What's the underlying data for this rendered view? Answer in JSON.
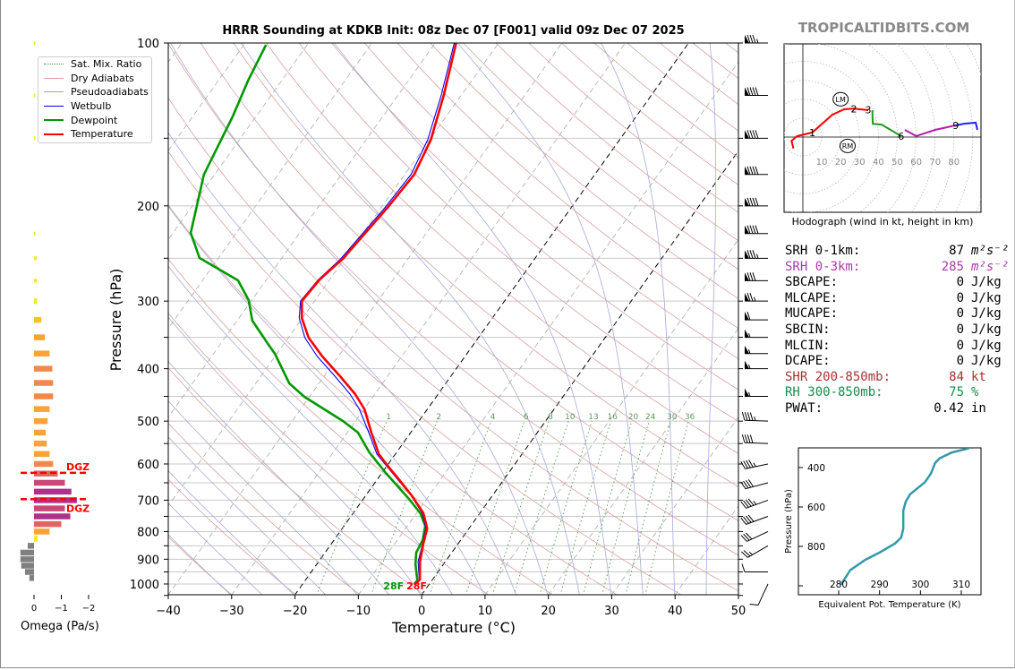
{
  "title": "HRRR Sounding at KDKB Init: 08z Dec 07 [F001] valid 09z Dec 07 2025",
  "brand": "TROPICALTIDBITS.COM",
  "legend": [
    {
      "label": "Sat. Mix. Ratio",
      "color": "#2ca02c",
      "style": "dotted"
    },
    {
      "label": "Dry Adiabats",
      "color": "#d9a0a0",
      "style": "solid"
    },
    {
      "label": "Pseudoadiabats",
      "color": "#a0a0d8",
      "style": "solid"
    },
    {
      "label": "Wetbulb",
      "color": "#0000ff",
      "style": "solid"
    },
    {
      "label": "Dewpoint",
      "color": "#009900",
      "style": "thick"
    },
    {
      "label": "Temperature",
      "color": "#ff0000",
      "style": "thick"
    }
  ],
  "surface_labels": {
    "temperature": "28F",
    "dewpoint": "28F"
  },
  "stats": [
    {
      "label": "SRH 0-1km:",
      "value": "87",
      "unit": "m²s⁻²",
      "color": "#000000",
      "italic_unit": true
    },
    {
      "label": "SRH 0-3km:",
      "value": "285",
      "unit": "m²s⁻²",
      "color": "#a63ca6",
      "italic_unit": true
    },
    {
      "label": "SBCAPE:",
      "value": "0",
      "unit": "J/kg",
      "color": "#000000"
    },
    {
      "label": "MLCAPE:",
      "value": "0",
      "unit": "J/kg",
      "color": "#000000"
    },
    {
      "label": "MUCAPE:",
      "value": "0",
      "unit": "J/kg",
      "color": "#000000"
    },
    {
      "label": "SBCIN:",
      "value": "0",
      "unit": "J/kg",
      "color": "#000000"
    },
    {
      "label": "MLCIN:",
      "value": "0",
      "unit": "J/kg",
      "color": "#000000"
    },
    {
      "label": "DCAPE:",
      "value": "0",
      "unit": "J/kg",
      "color": "#000000"
    },
    {
      "label": "SHR 200-850mb:",
      "value": "84",
      "unit": "kt",
      "color": "#a83232"
    },
    {
      "label": "RH 300-850mb:",
      "value": "75",
      "unit": "%",
      "color": "#1a8a4a"
    },
    {
      "label": "PWAT:",
      "value": "0.42",
      "unit": "in",
      "color": "#000000"
    }
  ],
  "hodograph": {
    "caption": "Hodograph (wind in kt, height in km)",
    "ring_labels": [
      "10",
      "20",
      "30",
      "40",
      "50",
      "60",
      "70",
      "80"
    ],
    "segments": [
      {
        "color": "#ff0000",
        "points": [
          [
            -5,
            -6
          ],
          [
            -6,
            -2
          ],
          [
            -3,
            0.5
          ],
          [
            5,
            2.4
          ],
          [
            15.6,
            11.8
          ],
          [
            21.8,
            14.7
          ],
          [
            27,
            15
          ],
          [
            34.6,
            14.2
          ]
        ]
      },
      {
        "color": "#1f9a1f",
        "points": [
          [
            36.8,
            14.2
          ],
          [
            37,
            7
          ],
          [
            41.7,
            6.6
          ],
          [
            52,
            0.5
          ]
        ]
      },
      {
        "color": "#b020b0",
        "points": [
          [
            54,
            3.8
          ],
          [
            60,
            0.5
          ],
          [
            70,
            3.8
          ],
          [
            81,
            6.2
          ]
        ]
      },
      {
        "color": "#2020ff",
        "points": [
          [
            81,
            6.2
          ],
          [
            85.8,
            7.1
          ],
          [
            91.5,
            7.6
          ],
          [
            92.4,
            3.8
          ]
        ]
      }
    ],
    "height_labels": [
      {
        "text": "1",
        "u": 5,
        "v": 2.4
      },
      {
        "text": "2",
        "u": 27,
        "v": 15
      },
      {
        "text": "3",
        "u": 34.6,
        "v": 14.5
      },
      {
        "text": "6",
        "u": 52,
        "v": 0.5
      },
      {
        "text": "9",
        "u": 81,
        "v": 6.2
      }
    ],
    "storm_motion": [
      {
        "text": "LM",
        "u": 20,
        "v": 20
      },
      {
        "text": "RM",
        "u": 23.7,
        "v": -4.7
      }
    ]
  },
  "chart_data": [
    {
      "type": "line",
      "title": "HRRR Sounding at KDKB Init: 08z Dec 07 [F001] valid 09z Dec 07 2025",
      "xlabel": "Temperature (°C)",
      "ylabel": "Pressure (hPa)",
      "xlim": [
        -40,
        50
      ],
      "ylim": [
        1050,
        100
      ],
      "y_scale": "log",
      "skewed": true,
      "x_ticks": [
        "−40",
        "−30",
        "−20",
        "−10",
        "0",
        "10",
        "20",
        "30",
        "40",
        "50"
      ],
      "y_ticks": [
        "100",
        "200",
        "300",
        "400",
        "500",
        "600",
        "700",
        "800",
        "900",
        "1000"
      ],
      "mixing_ratio_labels": [
        "1",
        "2",
        "4",
        "6",
        "8",
        "10",
        "13",
        "16",
        "20",
        "24",
        "30",
        "36"
      ],
      "series": [
        {
          "name": "Temperature",
          "color": "#ff0000",
          "pressure": [
            100,
            124.7,
            150.9,
            175.1,
            201.7,
            250.6,
            273.6,
            299.8,
            322.3,
            350.5,
            379.8,
            413,
            445.7,
            475.6,
            525.1,
            575.4,
            604.7,
            645.2,
            685.7,
            740,
            789.5,
            842.5,
            909.3,
            981.2,
            1000
          ],
          "values": [
            -56.7,
            -52.8,
            -49.8,
            -48.5,
            -49.0,
            -50.3,
            -51.6,
            -52.0,
            -50.1,
            -46.8,
            -42.5,
            -37.5,
            -33.1,
            -29.9,
            -26.2,
            -22.6,
            -19.9,
            -16.2,
            -12.8,
            -8.9,
            -6.6,
            -5.5,
            -4.0,
            -2.0,
            -2.2
          ]
        },
        {
          "name": "Wetbulb",
          "color": "#0000ff",
          "pressure": [
            100,
            124.7,
            150.9,
            175.1,
            201.7,
            250.6,
            273.6,
            299.8,
            322.3,
            350.5,
            379.8,
            413,
            445.7,
            475.6,
            525.1,
            575.4,
            604.7,
            645.2,
            685.7,
            740,
            789.5,
            842.5,
            909.3,
            981.2,
            1000
          ],
          "values": [
            -57.0,
            -53.2,
            -50.3,
            -49.0,
            -49.4,
            -50.6,
            -51.8,
            -52.2,
            -50.5,
            -47.4,
            -43.3,
            -38.3,
            -33.9,
            -30.7,
            -26.6,
            -22.9,
            -20.1,
            -16.4,
            -12.9,
            -9.1,
            -6.8,
            -5.6,
            -4.3,
            -2.1,
            -2.2
          ]
        },
        {
          "name": "Dewpoint",
          "color": "#009900",
          "pressure": [
            100.8,
            117.4,
            136.7,
            175.1,
            224.4,
            249.7,
            274.6,
            298.7,
            326.1,
            361.4,
            375.4,
            425.8,
            450.8,
            499.7,
            525.1,
            571.1,
            621,
            696.2,
            740,
            780.6,
            829.7,
            875.2,
            919.7,
            985,
            1000
          ],
          "values": [
            -86.5,
            -85.3,
            -83.7,
            -81.7,
            -77.2,
            -73.0,
            -64.4,
            -60.5,
            -57.6,
            -52.3,
            -50.3,
            -44.7,
            -40.8,
            -32.0,
            -28.3,
            -24.3,
            -19.6,
            -12.8,
            -9.4,
            -7.2,
            -6.0,
            -5.6,
            -4.4,
            -2.3,
            -2.4
          ]
        }
      ],
      "wind_barbs": [
        {
          "p": 100,
          "dir": 270,
          "kt": 85
        },
        {
          "p": 125,
          "dir": 270,
          "kt": 90
        },
        {
          "p": 150,
          "dir": 270,
          "kt": 90
        },
        {
          "p": 175,
          "dir": 270,
          "kt": 90
        },
        {
          "p": 200,
          "dir": 270,
          "kt": 90
        },
        {
          "p": 225,
          "dir": 270,
          "kt": 90
        },
        {
          "p": 250,
          "dir": 270,
          "kt": 85
        },
        {
          "p": 275,
          "dir": 270,
          "kt": 80
        },
        {
          "p": 300,
          "dir": 270,
          "kt": 75
        },
        {
          "p": 325,
          "dir": 270,
          "kt": 60
        },
        {
          "p": 350,
          "dir": 270,
          "kt": 55
        },
        {
          "p": 375,
          "dir": 270,
          "kt": 55
        },
        {
          "p": 400,
          "dir": 270,
          "kt": 55
        },
        {
          "p": 450,
          "dir": 270,
          "kt": 55
        },
        {
          "p": 500,
          "dir": 272,
          "kt": 45
        },
        {
          "p": 550,
          "dir": 272,
          "kt": 40
        },
        {
          "p": 600,
          "dir": 258,
          "kt": 45
        },
        {
          "p": 650,
          "dir": 255,
          "kt": 40
        },
        {
          "p": 700,
          "dir": 250,
          "kt": 45
        },
        {
          "p": 750,
          "dir": 250,
          "kt": 40
        },
        {
          "p": 800,
          "dir": 245,
          "kt": 30
        },
        {
          "p": 850,
          "dir": 240,
          "kt": 25
        },
        {
          "p": 950,
          "dir": 270,
          "kt": 10
        },
        {
          "p": 1000,
          "dir": 205,
          "kt": 10
        }
      ]
    },
    {
      "type": "bar",
      "xlabel": "Omega (Pa/s)",
      "x_ticks": [
        "0",
        "−1",
        "−2"
      ],
      "xlim": [
        0.5,
        -2.5
      ],
      "orientation": "horizontal",
      "pressure": [
        100,
        125,
        150,
        225,
        250,
        275,
        300,
        325,
        350,
        375,
        400,
        425,
        450,
        475,
        500,
        525,
        550,
        575,
        600,
        625,
        650,
        675,
        700,
        725,
        750,
        775,
        800,
        825,
        850,
        875,
        900,
        925,
        950,
        975
      ],
      "values": [
        -0.03,
        -0.03,
        -0.03,
        -0.03,
        -0.1,
        -0.1,
        -0.1,
        -0.27,
        -0.4,
        -0.57,
        -0.67,
        -0.7,
        -0.7,
        -0.57,
        -0.5,
        -0.43,
        -0.47,
        -0.57,
        -0.7,
        -0.87,
        -1.13,
        -1.37,
        -1.57,
        -1.13,
        -1.33,
        -1.0,
        -0.57,
        -0.13,
        0.23,
        0.5,
        0.5,
        0.47,
        0.33,
        0.17
      ],
      "dgz": {
        "label": "DGZ",
        "top_hPa": 623,
        "bottom_hPa": 697,
        "color": "#ff0000"
      }
    },
    {
      "type": "line",
      "xlabel": "Equivalent Pot. Temperature (K)",
      "ylabel": "Pressure (hPa)",
      "x_ticks": [
        "280",
        "290",
        "300",
        "310"
      ],
      "y_ticks": [
        "400",
        "600",
        "800"
      ],
      "xlim": [
        270.5,
        314.6
      ],
      "ylim": [
        1045,
        300
      ],
      "color": "#3399aa",
      "pressure": [
        303,
        323,
        353,
        376,
        429,
        474,
        535,
        573,
        618,
        709,
        755,
        785,
        830,
        868,
        921,
        990
      ],
      "values": [
        311.7,
        307.7,
        304.7,
        303.6,
        302.6,
        301.1,
        297.5,
        296.4,
        295.8,
        295.8,
        295.3,
        293.8,
        290.1,
        286.5,
        282.8,
        280.7
      ]
    }
  ]
}
